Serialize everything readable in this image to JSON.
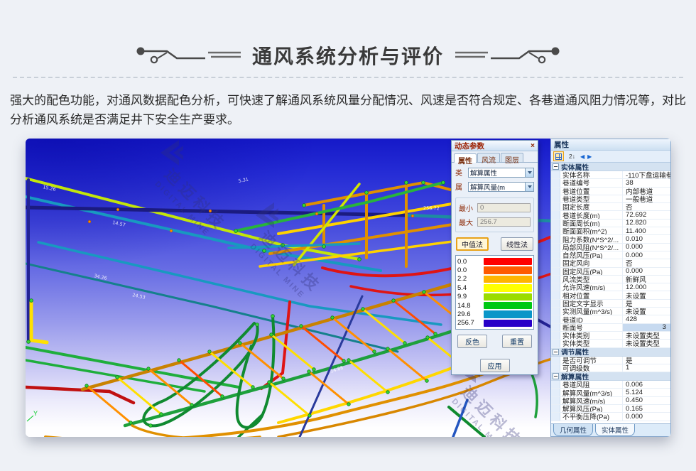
{
  "header": {
    "title": "通风系统分析与评价"
  },
  "intro": {
    "text": "强大的配色功能，对通风数据配色分析，可快速了解通风系统风量分配情况、风速是否符合规定、各巷道通风阻力情况等，对比分析通风系统是否满足井下安全生产要求。"
  },
  "watermark": {
    "cn": "迪迈科技",
    "en": "DIGITAL MINE"
  },
  "viewport": {
    "axis_label": "Y",
    "labels": [
      "15.26",
      "14.57",
      "256.72",
      "256.72",
      "24.53",
      "34.26",
      "14.88",
      "5.31"
    ]
  },
  "dialog": {
    "title": "动态参数",
    "close_glyph": "×",
    "tabs": [
      {
        "label": "属性",
        "active": true
      },
      {
        "label": "风流"
      },
      {
        "label": "图层"
      }
    ],
    "class_label": "类",
    "class_value": "解算属性",
    "attr_label": "属",
    "attr_value": "解算风量(m",
    "min_label": "最小",
    "min_value": "0",
    "max_label": "最大",
    "max_value": "256.7",
    "methods": [
      {
        "label": "中值法",
        "active": true
      },
      {
        "label": "线性法"
      }
    ],
    "legend": [
      {
        "value": "0.0",
        "color": "#ff0000"
      },
      {
        "value": "0.0",
        "color": "#ff5a00"
      },
      {
        "value": "2.2",
        "color": "#ffb400"
      },
      {
        "value": "5.4",
        "color": "#ffff00"
      },
      {
        "value": "9.9",
        "color": "#9bdc00"
      },
      {
        "value": "14.8",
        "color": "#00c814"
      },
      {
        "value": "29.6",
        "color": "#0a96c8"
      },
      {
        "value": "256.7",
        "color": "#2800c8"
      }
    ],
    "invert_label": "反色",
    "reset_label": "重置",
    "apply_label": "应用"
  },
  "panel": {
    "title": "属性",
    "toolbar": {
      "sort_glyph": "2↓",
      "prev_glyph": "◀",
      "next_glyph": "▶"
    },
    "grid": [
      {
        "type": "group",
        "label": "实体属性"
      },
      {
        "type": "row",
        "label": "实体名称",
        "value": "-110下盘运输巷"
      },
      {
        "type": "row",
        "label": "巷道编号",
        "value": "38"
      },
      {
        "type": "row",
        "label": "巷道位置",
        "value": "内部巷道"
      },
      {
        "type": "row",
        "label": "巷道类型",
        "value": "一般巷道"
      },
      {
        "type": "row",
        "label": "固定长度",
        "value": "否"
      },
      {
        "type": "row",
        "label": "巷道长度(m)",
        "value": "72.692"
      },
      {
        "type": "row",
        "label": "断面周长(m)",
        "value": "12.820"
      },
      {
        "type": "row",
        "label": "断面面积(m^2)",
        "value": "11.400"
      },
      {
        "type": "row",
        "label": "阻力系数(N*S^2/...",
        "value": "0.010"
      },
      {
        "type": "row",
        "label": "局部风阻(N*S^2/...",
        "value": "0.000"
      },
      {
        "type": "row",
        "label": "自然风压(Pa)",
        "value": "0.000"
      },
      {
        "type": "row",
        "label": "固定风向",
        "value": "否"
      },
      {
        "type": "row",
        "label": "固定风压(Pa)",
        "value": "0.000"
      },
      {
        "type": "row",
        "label": "风流类型",
        "value": "新鲜风"
      },
      {
        "type": "row",
        "label": "允许风速(m/s)",
        "value": "12.000"
      },
      {
        "type": "row",
        "label": "相对位置",
        "value": "未设置"
      },
      {
        "type": "row",
        "label": "固定文字显示",
        "value": "是"
      },
      {
        "type": "row",
        "label": "实测风量(m^3/s)",
        "value": "未设置"
      },
      {
        "type": "row",
        "label": "巷道ID",
        "value": "428"
      },
      {
        "type": "row",
        "label": "断面号",
        "value": "3",
        "selected": true
      },
      {
        "type": "row",
        "label": "实体类别",
        "value": "未设置类型"
      },
      {
        "type": "row",
        "label": "实体类型",
        "value": "未设置类型"
      },
      {
        "type": "group",
        "label": "调节属性"
      },
      {
        "type": "row",
        "label": "是否可调节",
        "value": "是"
      },
      {
        "type": "row",
        "label": "可调级数",
        "value": "1"
      },
      {
        "type": "group",
        "label": "解算属性"
      },
      {
        "type": "row",
        "label": "巷道风阻",
        "value": "0.006"
      },
      {
        "type": "row",
        "label": "解算风量(m^3/s)",
        "value": "5.124"
      },
      {
        "type": "row",
        "label": "解算风速(m/s)",
        "value": "0.450"
      },
      {
        "type": "row",
        "label": "解算风压(Pa)",
        "value": "0.165"
      },
      {
        "type": "row",
        "label": "不平衡压降(Pa)",
        "value": "0.000"
      }
    ],
    "bottom_tabs": [
      {
        "label": "几何属性"
      },
      {
        "label": "实体属性",
        "active": true
      }
    ]
  }
}
